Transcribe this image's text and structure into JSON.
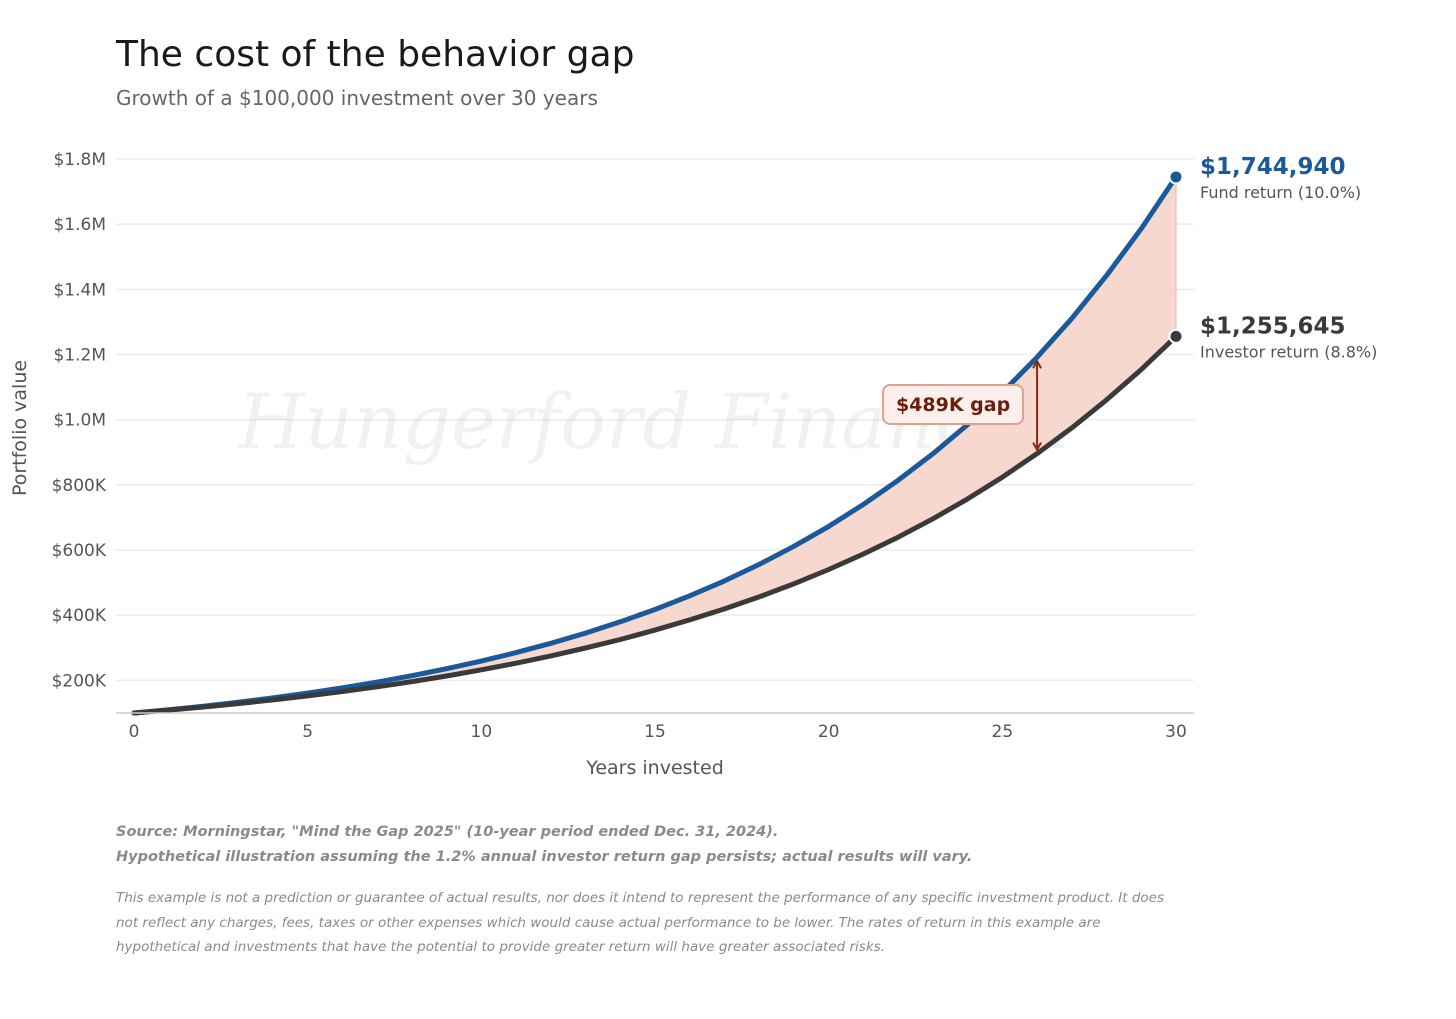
{
  "header": {
    "title": "The cost of the behavior gap",
    "subtitle": "Growth of a $100,000 investment over 30 years"
  },
  "chart_data": {
    "type": "area",
    "xlabel": "Years invested",
    "ylabel": "Portfolio value",
    "xlim": [
      0,
      30
    ],
    "ylim": [
      100000,
      1800000
    ],
    "x_ticks": [
      0,
      5,
      10,
      15,
      20,
      25,
      30
    ],
    "x_tick_labels": [
      "0",
      "5",
      "10",
      "15",
      "20",
      "25",
      "30"
    ],
    "y_ticks": [
      200000,
      400000,
      600000,
      800000,
      1000000,
      1200000,
      1400000,
      1600000,
      1800000
    ],
    "y_tick_labels": [
      "$200K",
      "$400K",
      "$600K",
      "$800K",
      "$1.0M",
      "$1.2M",
      "$1.4M",
      "$1.6M",
      "$1.8M"
    ],
    "grid": "horizontal",
    "watermark": "Hungerford Financial",
    "series": [
      {
        "name": "Fund return (10.0%)",
        "color": "#1a5a9a",
        "x": [
          0,
          1,
          2,
          3,
          4,
          5,
          6,
          7,
          8,
          9,
          10,
          11,
          12,
          13,
          14,
          15,
          16,
          17,
          18,
          19,
          20,
          21,
          22,
          23,
          24,
          25,
          26,
          27,
          28,
          29,
          30
        ],
        "values": [
          100000,
          110000,
          121000,
          133100,
          146410,
          161051,
          177156,
          194872,
          214359,
          235795,
          259374,
          285312,
          313843,
          345227,
          379750,
          417725,
          459497,
          505447,
          555992,
          611591,
          672750,
          740025,
          814027,
          895430,
          984973,
          1083471,
          1191818,
          1310999,
          1442099,
          1586309,
          1744940
        ],
        "end_label": "$1,744,940"
      },
      {
        "name": "Investor return (8.8%)",
        "color": "#3a3a3a",
        "x": [
          0,
          1,
          2,
          3,
          4,
          5,
          6,
          7,
          8,
          9,
          10,
          11,
          12,
          13,
          14,
          15,
          16,
          17,
          18,
          19,
          20,
          21,
          22,
          23,
          24,
          25,
          26,
          27,
          28,
          29,
          30
        ],
        "values": [
          100000,
          108800,
          118374,
          128791,
          140125,
          152456,
          165872,
          180469,
          196351,
          213630,
          232430,
          252883,
          275137,
          299349,
          325692,
          354353,
          385536,
          419463,
          456376,
          496537,
          540232,
          587772,
          639496,
          695771,
          756999,
          823615,
          896093,
          974949,
          1060745,
          1154091,
          1255645
        ],
        "end_label": "$1,255,645"
      }
    ],
    "fill_between": {
      "color": "#f5d6cc"
    },
    "annotation": {
      "x": 26,
      "text": "$489K gap",
      "color": "#8a2a10"
    }
  },
  "footer": {
    "source_line1": "Source: Morningstar, \"Mind the Gap 2025\" (10-year period ended Dec. 31, 2024).",
    "source_line2": "Hypothetical illustration assuming the 1.2% annual investor return gap persists; actual results will vary.",
    "disclaimer": "This example is not a prediction or guarantee of actual results, nor does it intend to represent the performance of any specific investment product. It does not reflect any charges, fees, taxes or other expenses which would cause actual performance to be lower. The rates of return in this example are hypothetical and investments that have the potential to provide greater return will have greater associated risks."
  }
}
